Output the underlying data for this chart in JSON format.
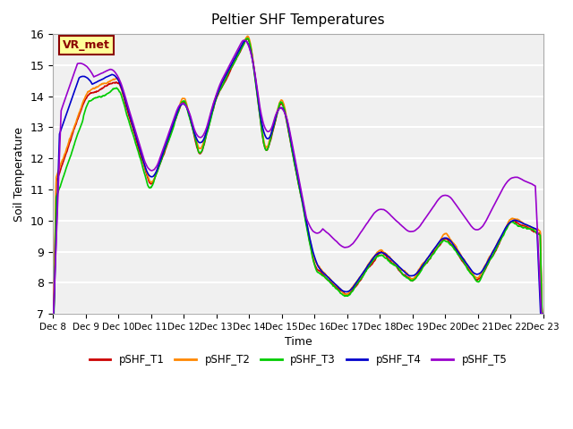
{
  "title": "Peltier SHF Temperatures",
  "xlabel": "Time",
  "ylabel": "Soil Temperature",
  "ylim": [
    7.0,
    16.0
  ],
  "yticks": [
    7.0,
    8.0,
    9.0,
    10.0,
    11.0,
    12.0,
    13.0,
    14.0,
    15.0,
    16.0
  ],
  "x_tick_labels": [
    "Dec 8",
    "Dec 9",
    "Dec 10",
    "Dec 11",
    "Dec 12",
    "Dec 13",
    "Dec 14",
    "Dec 15",
    "Dec 16",
    "Dec 17",
    "Dec 18",
    "Dec 19",
    "Dec 20",
    "Dec 21",
    "Dec 22",
    "Dec 23"
  ],
  "colors": {
    "T1": "#cc0000",
    "T2": "#ff8800",
    "T3": "#00cc00",
    "T4": "#0000cc",
    "T5": "#9900cc"
  },
  "legend_labels": [
    "pSHF_T1",
    "pSHF_T2",
    "pSHF_T3",
    "pSHF_T4",
    "pSHF_T5"
  ],
  "annotation_text": "VR_met",
  "annotation_color": "#8b0000",
  "annotation_bg": "#ffff99",
  "bg_color": "#e8e8e8",
  "plot_bg_color": "#f0f0f0",
  "n_points": 1500
}
